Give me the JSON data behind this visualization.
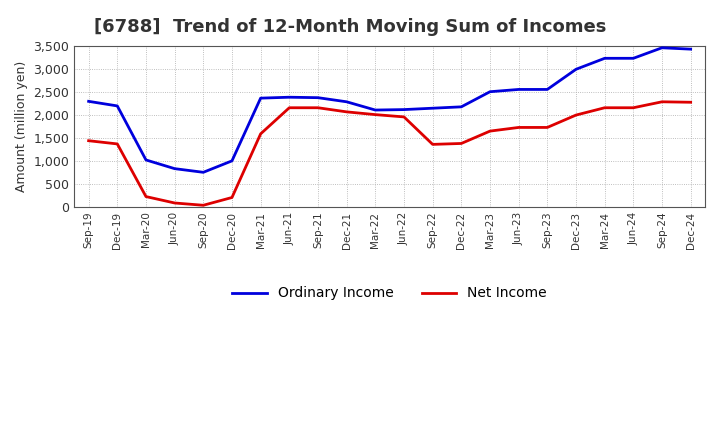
{
  "title": "[6788]  Trend of 12-Month Moving Sum of Incomes",
  "ylabel": "Amount (million yen)",
  "background_color": "#ffffff",
  "plot_background": "#ffffff",
  "x_labels": [
    "Sep-19",
    "Dec-19",
    "Mar-20",
    "Jun-20",
    "Sep-20",
    "Dec-20",
    "Mar-21",
    "Jun-21",
    "Sep-21",
    "Dec-21",
    "Mar-22",
    "Jun-22",
    "Sep-22",
    "Dec-22",
    "Mar-23",
    "Jun-23",
    "Sep-23",
    "Dec-23",
    "Mar-24",
    "Jun-24",
    "Sep-24",
    "Dec-24"
  ],
  "ordinary_income": [
    2300,
    2200,
    1020,
    830,
    750,
    1000,
    2370,
    2390,
    2380,
    2290,
    2110,
    2120,
    2150,
    2180,
    2510,
    2560,
    2560,
    3000,
    3240,
    3240,
    3470,
    3440
  ],
  "net_income": [
    1440,
    1370,
    220,
    80,
    30,
    200,
    1590,
    2160,
    2160,
    2070,
    2010,
    1960,
    1360,
    1380,
    1650,
    1730,
    1730,
    2000,
    2160,
    2160,
    2290,
    2280
  ],
  "ordinary_color": "#0000dd",
  "net_color": "#dd0000",
  "ylim": [
    0,
    3500
  ],
  "yticks": [
    0,
    500,
    1000,
    1500,
    2000,
    2500,
    3000,
    3500
  ],
  "line_width": 2.0,
  "title_color": "#333333",
  "title_fontsize": 13,
  "grid_color": "#aaaaaa",
  "border_color": "#555555"
}
